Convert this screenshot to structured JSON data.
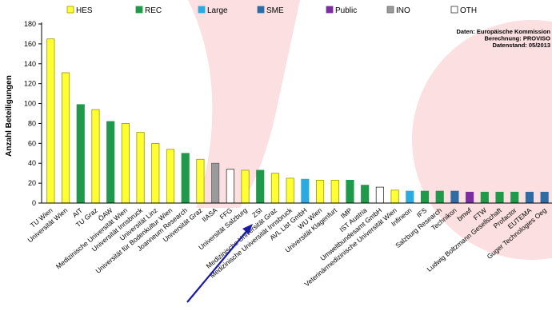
{
  "chart_data": {
    "type": "bar",
    "ylabel": "Anzahl Beteiligungen",
    "ylim": [
      0,
      180
    ],
    "yticks": [
      0,
      20,
      40,
      60,
      80,
      100,
      120,
      140,
      160,
      180
    ],
    "grid": false,
    "legend_position": "top",
    "legend": [
      {
        "key": "HES",
        "label": "HES",
        "color": "#ffff33",
        "border": "#999900"
      },
      {
        "key": "REC",
        "label": "REC",
        "color": "#1e9a4a",
        "border": "#1e9a4a"
      },
      {
        "key": "Large",
        "label": "Large",
        "color": "#29abe2",
        "border": "#29abe2"
      },
      {
        "key": "SME",
        "label": "SME",
        "color": "#2e6da4",
        "border": "#2e6da4"
      },
      {
        "key": "Public",
        "label": "Public",
        "color": "#7b2f9e",
        "border": "#7b2f9e"
      },
      {
        "key": "INO",
        "label": "INO",
        "color": "#9a9a9a",
        "border": "#666666"
      },
      {
        "key": "OTH",
        "label": "OTH",
        "color": "#ffffff",
        "border": "#333333"
      }
    ],
    "annotation": [
      "Daten: Europäische Kommission",
      "Berechnung: PROVISO",
      "Datenstand: 05/2013"
    ],
    "bars": [
      {
        "label": "TU Wien",
        "value": 165,
        "type": "HES"
      },
      {
        "label": "Universität Wien",
        "value": 131,
        "type": "HES"
      },
      {
        "label": "AIT",
        "value": 99,
        "type": "REC"
      },
      {
        "label": "TU Graz",
        "value": 94,
        "type": "HES"
      },
      {
        "label": "ÖAW",
        "value": 82,
        "type": "REC"
      },
      {
        "label": "Medizinische Universität Wien",
        "value": 80,
        "type": "HES"
      },
      {
        "label": "Universität Innsbruck",
        "value": 71,
        "type": "HES"
      },
      {
        "label": "Universität Linz",
        "value": 60,
        "type": "HES"
      },
      {
        "label": "Universität für Bodenkultur Wien",
        "value": 54,
        "type": "HES"
      },
      {
        "label": "Joanneum Research",
        "value": 50,
        "type": "REC"
      },
      {
        "label": "Universität Graz",
        "value": 44,
        "type": "HES"
      },
      {
        "label": "IIASA",
        "value": 40,
        "type": "INO"
      },
      {
        "label": "FFG",
        "value": 34,
        "type": "OTH"
      },
      {
        "label": "Universität Salzburg",
        "value": 33,
        "type": "HES"
      },
      {
        "label": "ZSI",
        "value": 33,
        "type": "REC"
      },
      {
        "label": "Medizinische Universität Graz",
        "value": 30,
        "type": "HES"
      },
      {
        "label": "Medizinische Universität Innsbruck",
        "value": 25,
        "type": "HES"
      },
      {
        "label": "AVL List GmbH",
        "value": 24,
        "type": "Large"
      },
      {
        "label": "WU Wien",
        "value": 23,
        "type": "HES"
      },
      {
        "label": "Universität Klagenfurt",
        "value": 23,
        "type": "HES"
      },
      {
        "label": "IMP",
        "value": 23,
        "type": "REC"
      },
      {
        "label": "IST Austria",
        "value": 18,
        "type": "REC"
      },
      {
        "label": "Umweltbundesamt GmbH",
        "value": 16,
        "type": "OTH"
      },
      {
        "label": "Veterinärmedizinische Universität Wien",
        "value": 13,
        "type": "HES"
      },
      {
        "label": "Infineon",
        "value": 12,
        "type": "Large"
      },
      {
        "label": "IFS",
        "value": 12,
        "type": "REC"
      },
      {
        "label": "Salzburg Research",
        "value": 12,
        "type": "REC"
      },
      {
        "label": "Technikon",
        "value": 12,
        "type": "SME"
      },
      {
        "label": "bmwf",
        "value": 11,
        "type": "Public"
      },
      {
        "label": "FTW",
        "value": 11,
        "type": "REC"
      },
      {
        "label": "Ludwig Boltzmann Gesellschaft",
        "value": 11,
        "type": "REC"
      },
      {
        "label": "Profactor",
        "value": 11,
        "type": "REC"
      },
      {
        "label": "EUTEMA",
        "value": 11,
        "type": "SME"
      },
      {
        "label": "Guger Technologies Oeg",
        "value": 11,
        "type": "SME"
      }
    ]
  }
}
